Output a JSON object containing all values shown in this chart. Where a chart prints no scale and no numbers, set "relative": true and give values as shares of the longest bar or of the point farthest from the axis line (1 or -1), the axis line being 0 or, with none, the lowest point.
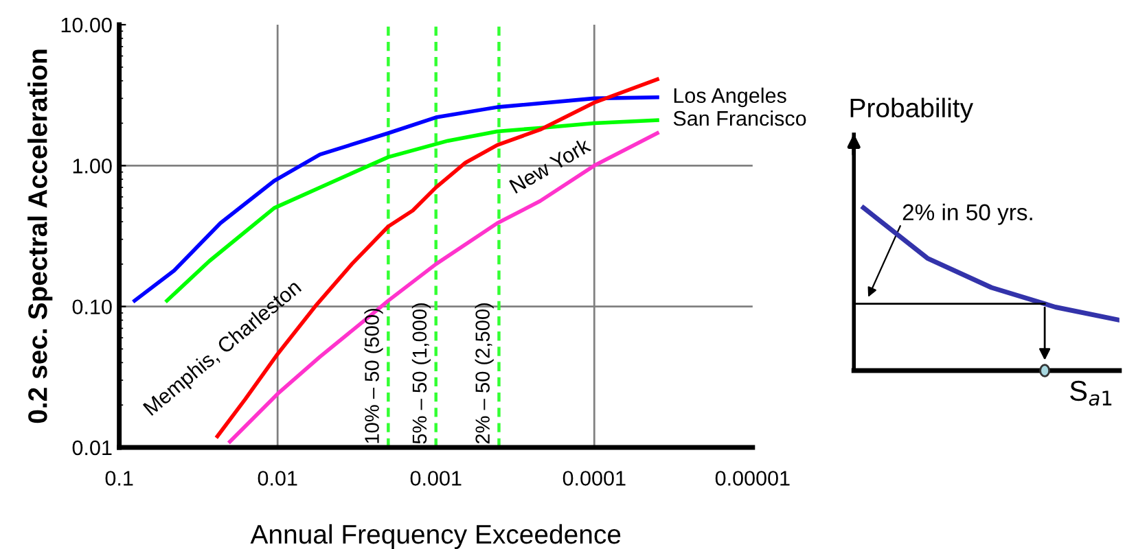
{
  "chart_data": [
    {
      "type": "line",
      "xlabel": "Annual Frequency Exceedence",
      "ylabel": "0.2 sec. Spectral Acceleration",
      "log": "xy",
      "xlim": [
        0.1,
        1e-05
      ],
      "ylim": [
        0.01,
        10
      ],
      "xticks": [
        0.1,
        0.01,
        0.001,
        0.0001,
        {
          "value": 1e-05,
          "label": "0.00001"
        }
      ],
      "yticks": [
        {
          "value": 0.01,
          "label": "0.01"
        },
        {
          "value": 0.1,
          "label": "0.10"
        },
        {
          "value": 1,
          "label": "1.00"
        },
        {
          "value": 10,
          "label": "10.00"
        }
      ],
      "grid": false,
      "legend": false,
      "series": [
        {
          "name": "Los Angeles",
          "color": "#0000ff",
          "x": [
            0.08,
            0.045,
            0.023,
            0.0105,
            0.0054,
            0.002,
            0.001,
            0.00041,
            0.0001,
            4e-05
          ],
          "values": [
            0.11,
            0.18,
            0.39,
            0.78,
            1.2,
            1.7,
            2.2,
            2.6,
            3.0,
            3.05
          ]
        },
        {
          "name": "San Francisco",
          "color": "#00ff00",
          "x": [
            0.05,
            0.027,
            0.0105,
            0.0047,
            0.002,
            0.00084,
            0.00041,
            0.00022,
            0.0001,
            4e-05
          ],
          "values": [
            0.11,
            0.21,
            0.5,
            0.75,
            1.15,
            1.5,
            1.75,
            1.85,
            2.0,
            2.1
          ]
        },
        {
          "name": "Memphis, Charleston",
          "color": "#ff0000",
          "x": [
            0.024,
            0.016,
            0.01,
            0.0058,
            0.0034,
            0.002,
            0.0014,
            0.001,
            0.00065,
            0.00041,
            0.00022,
            0.0001,
            4e-05
          ],
          "values": [
            0.012,
            0.022,
            0.046,
            0.1,
            0.2,
            0.37,
            0.48,
            0.7,
            1.05,
            1.4,
            1.8,
            2.8,
            4.1
          ]
        },
        {
          "name": "New York",
          "color": "#ff33cc",
          "x": [
            0.02,
            0.01,
            0.0054,
            0.0026,
            0.002,
            0.001,
            0.00041,
            0.00022,
            0.0001,
            4e-05
          ],
          "values": [
            0.011,
            0.024,
            0.044,
            0.086,
            0.11,
            0.2,
            0.39,
            0.56,
            1.0,
            1.7
          ]
        }
      ],
      "ref_lines": [
        {
          "axis": "x",
          "value": 0.01,
          "label": null,
          "color": "#808080",
          "line_style": "solid"
        },
        {
          "axis": "x",
          "value": 0.0001,
          "label": null,
          "color": "#808080",
          "line_style": "solid"
        },
        {
          "axis": "y",
          "value": 1,
          "label": null,
          "color": "#808080",
          "line_style": "solid"
        },
        {
          "axis": "y",
          "value": 0.1,
          "label": null,
          "color": "#808080",
          "line_style": "solid"
        },
        {
          "axis": "x",
          "value": 0.002,
          "label": "10% – 50 (500)",
          "color": "#33ff33",
          "line_style": "dashed"
        },
        {
          "axis": "x",
          "value": 0.001,
          "label": "5% – 50 (1,000)",
          "color": "#33ff33",
          "line_style": "dashed"
        },
        {
          "axis": "x",
          "value": 0.0004,
          "label": "2% – 50 (2,500)",
          "color": "#33ff33",
          "line_style": "dashed"
        }
      ]
    },
    {
      "type": "line",
      "relative": true,
      "ylabel": "Probability",
      "xlabel": "S$_{a1}$",
      "categories": [
        null,
        null,
        null,
        null,
        null
      ],
      "series": [
        {
          "color": "#3333aa",
          "values": [
            1,
            0.69,
            0.51,
            0.39,
            0.31
          ]
        }
      ],
      "ref_lines": [
        {
          "axis": "y",
          "value": 0.41,
          "label": null,
          "color": "#000000",
          "line_style": "solid"
        }
      ],
      "annotations": [
        "2% in 50 yrs."
      ]
    }
  ]
}
